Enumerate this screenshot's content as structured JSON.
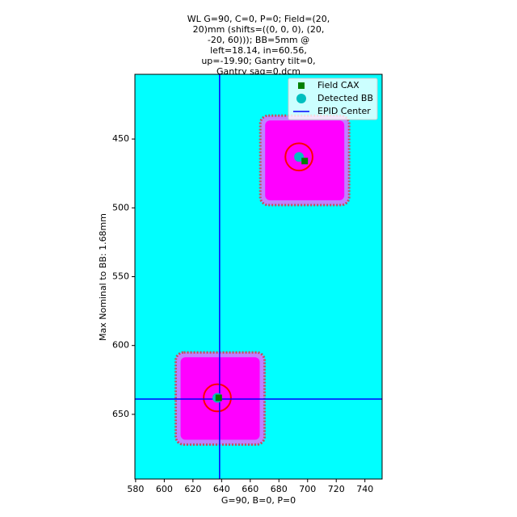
{
  "chart_data": {
    "type": "scatter",
    "title_lines": [
      "WL G=90, C=0, P=0; Field=(20,",
      "20)mm (shifts=((0, 0, 0), (20,",
      "-20, 60))); BB=5mm @",
      "left=18.14, in=60.56,",
      "up=-19.90; Gantry tilt=0,",
      "Gantry sag=0.dcm"
    ],
    "x_label": "G=90, B=0, P=0",
    "y_label": "Max Nominal to BB: 1.68mm",
    "xlim": [
      579.5,
      752
    ],
    "ylim": [
      697,
      403
    ],
    "xticks": [
      580,
      600,
      620,
      640,
      660,
      680,
      700,
      720,
      740
    ],
    "yticks": [
      450,
      500,
      550,
      600,
      650
    ],
    "background": "#00ffff",
    "field_color": "#ff00ff",
    "fields": [
      {
        "x": [
          667,
          729
        ],
        "y": [
          433,
          498
        ]
      },
      {
        "x": [
          608,
          670
        ],
        "y": [
          605,
          672
        ]
      }
    ],
    "bb_outline_radius": 9.5,
    "bb_outline_color": "#ff0000",
    "series": [
      {
        "name": "Field CAX",
        "color": "#008000",
        "marker": "square",
        "x": [
          698,
          638
        ],
        "y": [
          466,
          638
        ]
      },
      {
        "name": "Detected BB",
        "color": "#00bfbf",
        "marker": "circle",
        "x": [
          694,
          637
        ],
        "y": [
          463,
          638
        ]
      }
    ],
    "epid_center": {
      "name": "EPID Center",
      "color": "#0000ff",
      "x": 638.6,
      "y": 638.9
    },
    "legend": "upper right"
  }
}
